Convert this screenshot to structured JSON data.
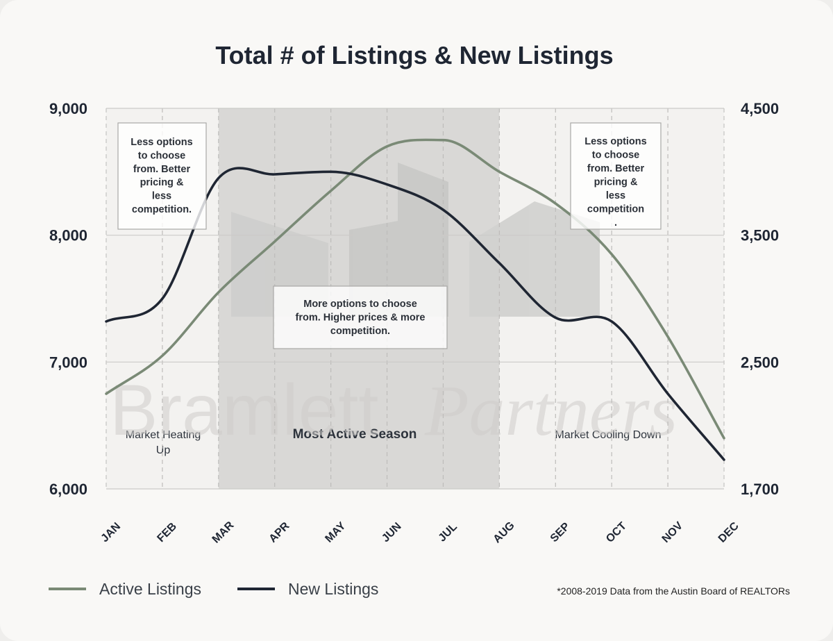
{
  "chart_data": {
    "type": "line",
    "title": "Total # of Listings & New Listings",
    "categories": [
      "JAN",
      "FEB",
      "MAR",
      "APR",
      "MAY",
      "JUN",
      "JUL",
      "AUG",
      "SEP",
      "OCT",
      "NOV",
      "DEC"
    ],
    "y_left": {
      "ticks": [
        "9,000",
        "8,000",
        "7,000",
        "6,000"
      ],
      "ylim": [
        6000,
        9000
      ]
    },
    "y_right": {
      "ticks": [
        "4,500",
        "3,500",
        "2,500",
        "1,700"
      ]
    },
    "grid": true,
    "series": [
      {
        "name": "Active Listings",
        "color": "#7a8a76",
        "axis": "left",
        "values": [
          6750,
          7050,
          7550,
          7950,
          8350,
          8700,
          8750,
          8500,
          8250,
          7850,
          7200,
          6400
        ]
      },
      {
        "name": "New Listings",
        "color": "#1f2633",
        "axis": "left",
        "values": [
          7320,
          7500,
          8450,
          8480,
          8500,
          8400,
          8200,
          7780,
          7350,
          7320,
          6750,
          6230
        ]
      }
    ],
    "regions": [
      {
        "label": "Market Heating Up",
        "start": 0,
        "end": 2,
        "color": "#f3f2f0"
      },
      {
        "label": "Most Active Season",
        "start": 2,
        "end": 7,
        "color": "#d9d8d6"
      },
      {
        "label": "Market Cooling Down",
        "start": 7,
        "end": 11,
        "color": "#f3f2f0"
      }
    ],
    "annotations": [
      {
        "text": "Less options to choose from. Better pricing & less competition."
      },
      {
        "text": "More options to choose from. Higher prices & more competition."
      },
      {
        "text": "Less options to choose from. Better pricing & less competition."
      }
    ],
    "legend_position": "bottom-left"
  },
  "watermark": {
    "text1": "Bramlett",
    "text2": "Partners"
  },
  "legend": [
    {
      "label": "Active Listings",
      "color": "#7a8a76"
    },
    {
      "label": "New Listings",
      "color": "#1f2633"
    }
  ],
  "footnote": "*2008-2019 Data from the Austin Board of REALTORs"
}
